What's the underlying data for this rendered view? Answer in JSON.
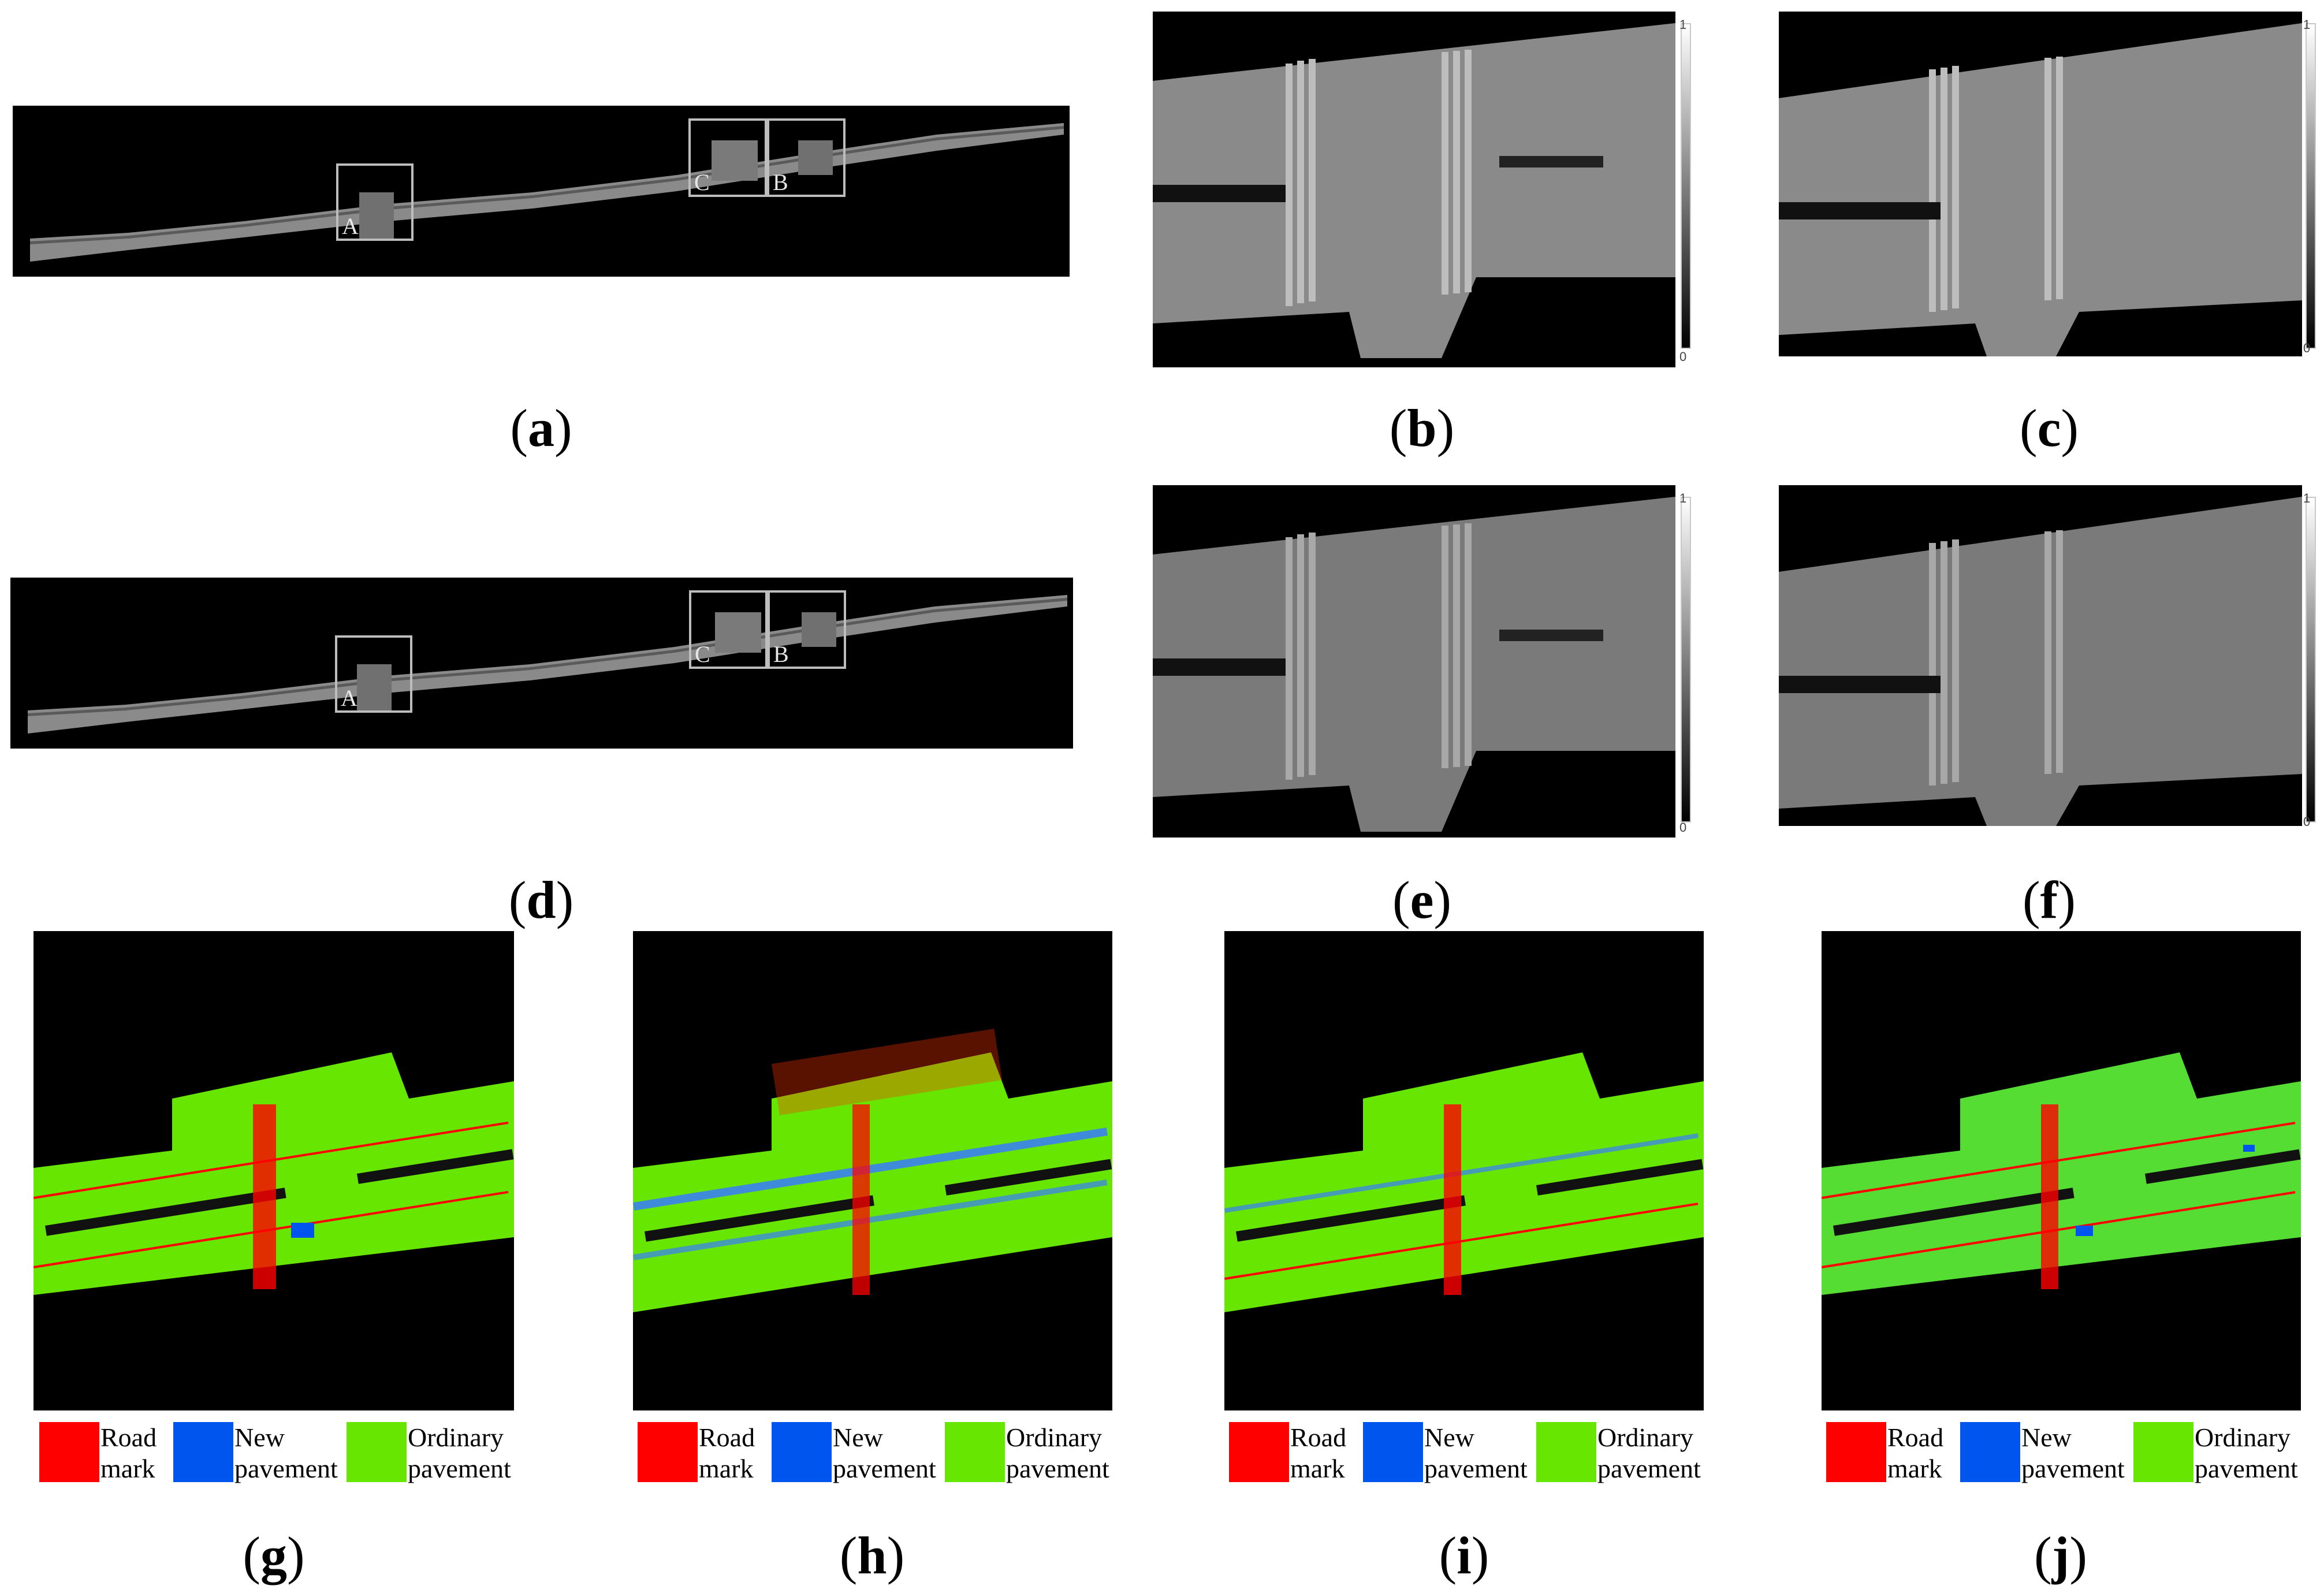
{
  "panels": {
    "a": {
      "caption_letter": "a",
      "boxes": [
        "A",
        "C",
        "B"
      ]
    },
    "b": {
      "caption_letter": "b",
      "scale_max": "1",
      "scale_min": "0"
    },
    "c": {
      "caption_letter": "c",
      "scale_max": "1",
      "scale_min": "0"
    },
    "d": {
      "caption_letter": "d",
      "boxes": [
        "A",
        "C",
        "B"
      ]
    },
    "e": {
      "caption_letter": "e",
      "scale_max": "1",
      "scale_min": "0"
    },
    "f": {
      "caption_letter": "f",
      "scale_max": "1",
      "scale_min": "0"
    },
    "g": {
      "caption_letter": "g"
    },
    "h": {
      "caption_letter": "h"
    },
    "i": {
      "caption_letter": "i"
    },
    "j": {
      "caption_letter": "j"
    }
  },
  "legend": {
    "items": [
      {
        "line1": "Road",
        "line2": "mark",
        "color": "#ff0000"
      },
      {
        "line1": "New",
        "line2": "pavement",
        "color": "#0055ee"
      },
      {
        "line1": "Ordinary",
        "line2": "pavement",
        "color": "#66e600"
      }
    ]
  },
  "colors": {
    "road_mark": "#ff0000",
    "new_pavement": "#0055ee",
    "ordinary_pavement": "#66e600",
    "background": "#000000",
    "intensity_road": "#8a8a8a"
  }
}
